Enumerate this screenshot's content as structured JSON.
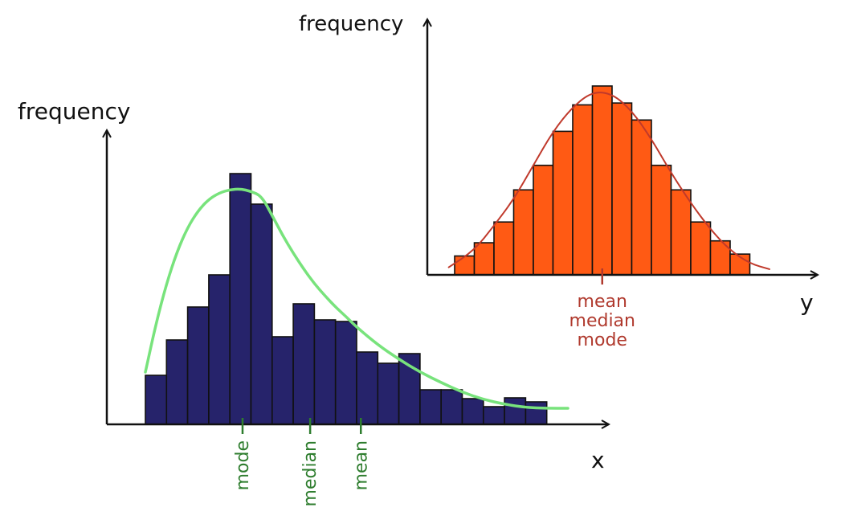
{
  "chart_data": [
    {
      "type": "bar",
      "subtype": "histogram-right-skewed",
      "title": "",
      "xlabel": "x",
      "ylabel": "frequency",
      "bar_color": "#26236b",
      "curve_color": "#78e37c",
      "marker_color": "#2e7d2e",
      "x": [
        0,
        1,
        2,
        3,
        4,
        5,
        6,
        7,
        8,
        9,
        10,
        11,
        12,
        13,
        14,
        15,
        16,
        17,
        18,
        19,
        20
      ],
      "values": [
        6.1,
        10.5,
        14.6,
        18.6,
        31.2,
        27.4,
        10.9,
        15.0,
        13.0,
        12.8,
        9.0,
        7.6,
        8.8,
        4.3,
        4.3,
        3.2,
        2.2,
        3.3,
        2.8,
        0,
        0
      ],
      "ylim": [
        0,
        33
      ],
      "curve": [
        [
          0,
          6.5
        ],
        [
          0.5,
          12.5
        ],
        [
          1,
          17.5
        ],
        [
          1.5,
          21.5
        ],
        [
          2,
          24.5
        ],
        [
          2.5,
          26.6
        ],
        [
          3,
          28
        ],
        [
          3.5,
          28.8
        ],
        [
          4,
          29.2
        ],
        [
          4.5,
          29.3
        ],
        [
          5,
          29
        ],
        [
          5.5,
          28.4
        ],
        [
          6,
          26
        ],
        [
          6.5,
          23.5
        ],
        [
          7,
          21.3
        ],
        [
          7.5,
          19.3
        ],
        [
          8,
          17.5
        ],
        [
          8.5,
          16
        ],
        [
          9,
          14.6
        ],
        [
          9.5,
          13.4
        ],
        [
          10,
          12.1
        ],
        [
          11,
          9.9
        ],
        [
          12,
          8.1
        ],
        [
          13,
          6.5
        ],
        [
          14,
          5.2
        ],
        [
          15,
          4
        ],
        [
          16,
          3.1
        ],
        [
          17,
          2.5
        ],
        [
          18,
          2.1
        ],
        [
          19,
          2
        ],
        [
          20,
          2
        ]
      ],
      "markers": [
        {
          "label": "mode",
          "x": 4.6
        },
        {
          "label": "median",
          "x": 7.8
        },
        {
          "label": "mean",
          "x": 10.2
        }
      ]
    },
    {
      "type": "bar",
      "subtype": "histogram-symmetric",
      "title": "",
      "xlabel": "y",
      "ylabel": "frequency",
      "bar_color": "#ff5a14",
      "curve_color": "#c0392b",
      "marker_color": "#b03a2e",
      "x": [
        0,
        1,
        2,
        3,
        4,
        5,
        6,
        7,
        8,
        9,
        10,
        11,
        12,
        13,
        14,
        15,
        16
      ],
      "values": [
        1.0,
        1.7,
        2.8,
        4.5,
        5.8,
        7.6,
        9.0,
        10.0,
        9.1,
        8.2,
        5.8,
        4.5,
        2.8,
        1.8,
        1.1,
        0,
        0
      ],
      "ylim": [
        0,
        13
      ],
      "curve": [
        [
          -0.3,
          0.4
        ],
        [
          1,
          1.3
        ],
        [
          2,
          2.6
        ],
        [
          3,
          4.0
        ],
        [
          4,
          5.8
        ],
        [
          5,
          7.6
        ],
        [
          6,
          8.9
        ],
        [
          7,
          9.7
        ],
        [
          8,
          9.6
        ],
        [
          9,
          8.7
        ],
        [
          10,
          7.2
        ],
        [
          11,
          5.4
        ],
        [
          12,
          3.8
        ],
        [
          13,
          2.4
        ],
        [
          14,
          1.3
        ],
        [
          15,
          0.6
        ],
        [
          16,
          0.3
        ]
      ],
      "markers": [
        {
          "label": "mean",
          "x": 7.5
        },
        {
          "label": "median",
          "x": 7.5
        },
        {
          "label": "mode",
          "x": 7.5
        }
      ]
    }
  ]
}
